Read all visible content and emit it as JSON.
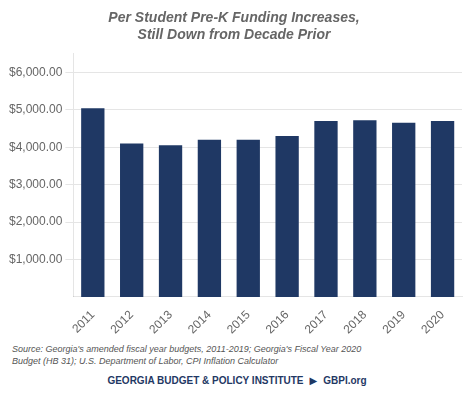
{
  "chart_data": {
    "type": "bar",
    "title": "Per Student Pre-K Funding Increases,\nStill Down from Decade Prior",
    "categories": [
      "2011",
      "2012",
      "2013",
      "2014",
      "2015",
      "2016",
      "2017",
      "2018",
      "2019",
      "2020"
    ],
    "values": [
      5040,
      4100,
      4055,
      4200,
      4200,
      4300,
      4700,
      4720,
      4650,
      4700
    ],
    "color": "#1f3864",
    "ylim": [
      0,
      6500
    ],
    "yticks": [
      {
        "value": 1000,
        "label": "$1,000.00"
      },
      {
        "value": 2000,
        "label": "$2,000.00"
      },
      {
        "value": 3000,
        "label": "$3,000.00"
      },
      {
        "value": 4000,
        "label": "$4,000.00"
      },
      {
        "value": 5000,
        "label": "$5,000.00"
      },
      {
        "value": 6000,
        "label": "$6,000.00"
      }
    ],
    "grid": true,
    "annotations": [
      "Source: Georgia's amended fiscal year budgets, 2011-2019; Georgia's Fiscal Year 2020\nBudget (HB 31); U.S. Department of Labor, CPI Inflation Calculator",
      "GEORGIA BUDGET & POLICY INSTITUTE",
      "▶",
      "GBPI.org"
    ]
  }
}
